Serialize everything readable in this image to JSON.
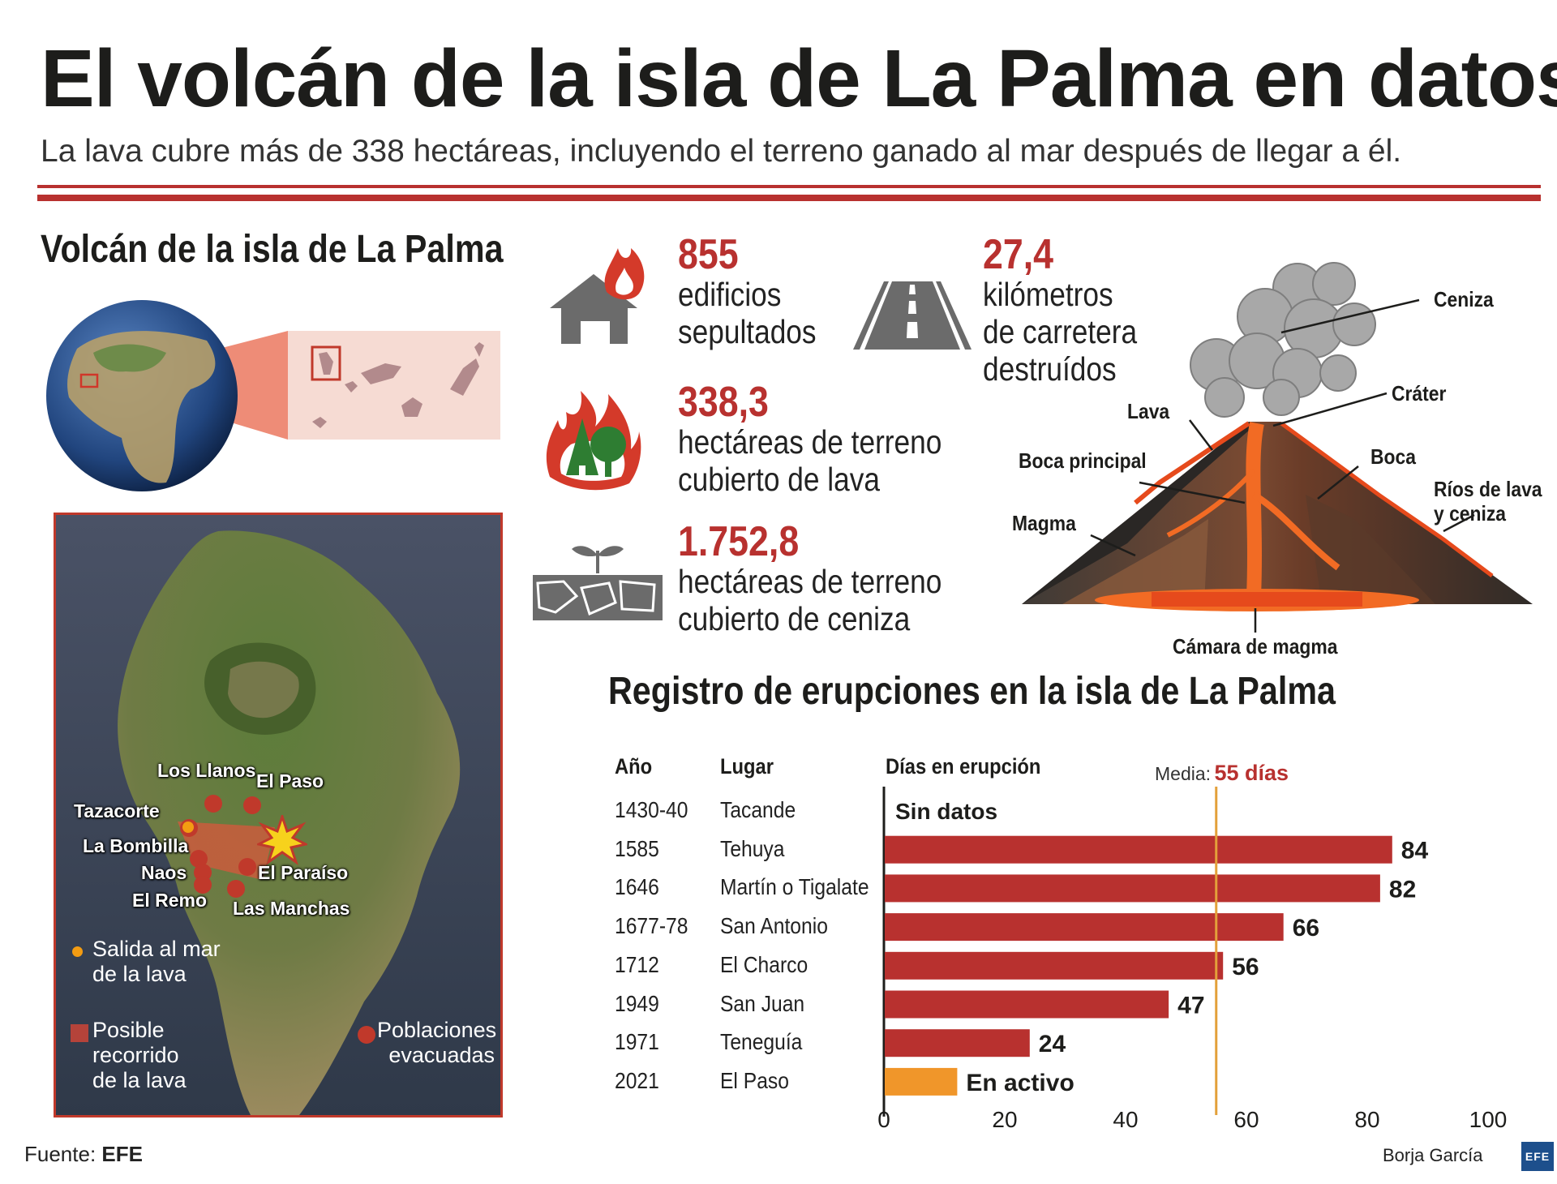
{
  "header": {
    "title": "El volcán de la isla de La Palma en datos",
    "subtitle": "La lava cubre más de 338 hectáreas, incluyendo el terreno ganado al mar después de llegar a él."
  },
  "map_section": {
    "title": "Volcán de la isla de La Palma",
    "places": [
      "Los Llanos",
      "El Paso",
      "Tazacorte",
      "La Bombilla",
      "Naos",
      "El Paraíso",
      "El Remo",
      "Las Manchas"
    ],
    "legend": {
      "sea_exit": "Salida al mar de la lava",
      "lava_path": "Posible recorrido de la lava",
      "evacuated": "Poblaciones evacuadas"
    },
    "colors": {
      "evacuated": "#c0392b",
      "sea_exit": "#f39c12",
      "lava_path": "#e0553c"
    }
  },
  "stats": [
    {
      "value": "855",
      "line1": "edificios",
      "line2": "sepultados",
      "line3": "",
      "icon": "burning-house-icon"
    },
    {
      "value": "27,4",
      "line1": "kilómetros",
      "line2": "de carretera",
      "line3": "destruídos",
      "icon": "road-icon"
    },
    {
      "value": "338,3",
      "line1": "hectáreas de terreno",
      "line2": "cubierto de lava",
      "line3": "",
      "icon": "burning-forest-icon"
    },
    {
      "value": "1.752,8",
      "line1": "hectáreas de terreno",
      "line2": "cubierto de ceniza",
      "line3": "",
      "icon": "cracked-ground-sprout-icon"
    }
  ],
  "volcano_diagram": {
    "labels": {
      "ceniza": "Ceniza",
      "crater": "Cráter",
      "lava": "Lava",
      "boca_principal": "Boca principal",
      "boca": "Boca",
      "rios": "Ríos de lava",
      "rios2": "y ceniza",
      "magma": "Magma",
      "camara": "Cámara de magma"
    }
  },
  "chart_data": {
    "type": "bar",
    "title": "Registro de erupciones en la isla de La Palma",
    "columns": {
      "year": "Año",
      "place": "Lugar",
      "days": "Días en erupción"
    },
    "rows": [
      {
        "year": "1430-40",
        "place": "Tacande",
        "value": null,
        "label": "Sin datos",
        "status": "no_data"
      },
      {
        "year": "1585",
        "place": "Tehuya",
        "value": 84,
        "label": "84",
        "status": "past"
      },
      {
        "year": "1646",
        "place": "Martín o Tigalate",
        "value": 82,
        "label": "82",
        "status": "past"
      },
      {
        "year": "1677-78",
        "place": "San Antonio",
        "value": 66,
        "label": "66",
        "status": "past"
      },
      {
        "year": "1712",
        "place": "El Charco",
        "value": 56,
        "label": "56",
        "status": "past"
      },
      {
        "year": "1949",
        "place": "San Juan",
        "value": 47,
        "label": "47",
        "status": "past"
      },
      {
        "year": "1971",
        "place": "Teneguía",
        "value": 24,
        "label": "24",
        "status": "past"
      },
      {
        "year": "2021",
        "place": "El Paso",
        "value": 12,
        "label": "En activo",
        "status": "active"
      }
    ],
    "mean": {
      "label": "Media:",
      "value_text": "55 días",
      "value": 55
    },
    "xlim": [
      0,
      100
    ],
    "xticks": [
      0,
      20,
      40,
      60,
      80,
      100
    ],
    "colors": {
      "bar": "#b8312f",
      "active": "#f0962a",
      "mean_line": "#e3a03a"
    }
  },
  "footer": {
    "source_label": "Fuente:",
    "source": "EFE",
    "author": "Borja García",
    "logo": "EFE"
  }
}
